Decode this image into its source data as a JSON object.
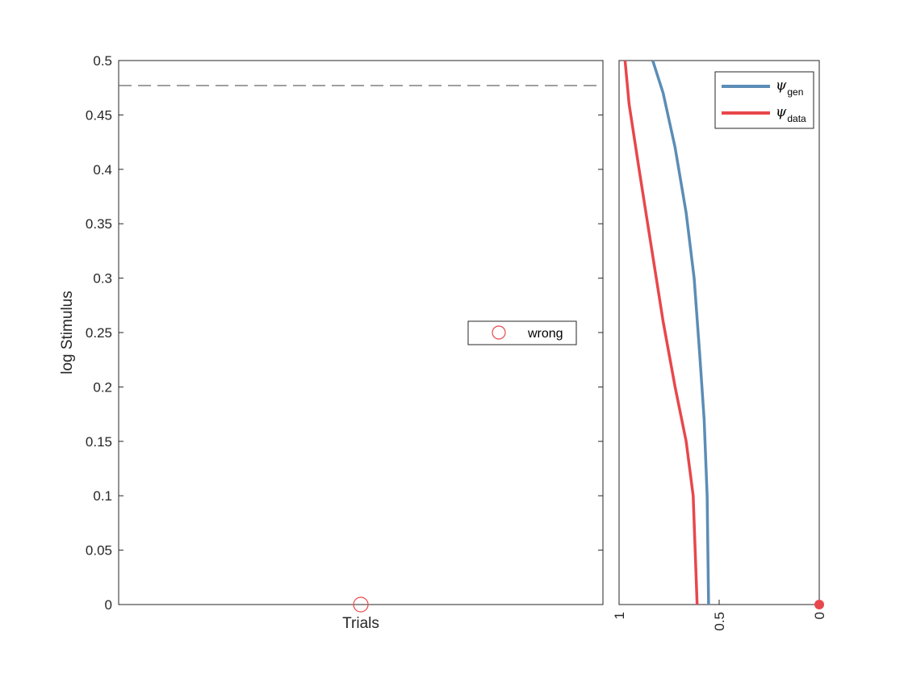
{
  "chart_data": [
    {
      "type": "scatter",
      "xlabel": "Trials",
      "ylabel": "log Stimulus",
      "ylim": [
        0,
        0.5
      ],
      "yticks": [
        "0",
        "0.05",
        "0.1",
        "0.15",
        "0.2",
        "0.25",
        "0.3",
        "0.35",
        "0.4",
        "0.45",
        "0.5"
      ],
      "threshold_line": 0.477,
      "series": [
        {
          "name": "wrong",
          "marker": "open-circle",
          "color": "#e8474b",
          "points": [
            {
              "x": 1,
              "y": 0
            }
          ]
        }
      ],
      "legend": {
        "position": "right",
        "entries": [
          "wrong"
        ]
      }
    },
    {
      "type": "line",
      "orientation": "vertical",
      "xlim": [
        1,
        0
      ],
      "xticks": [
        "1",
        "0.5",
        "0"
      ],
      "ylim": [
        0,
        0.5
      ],
      "series": [
        {
          "name": "ψ_gen",
          "symbol": "ψ",
          "subscript": "gen",
          "color": "#5b8db6",
          "x": [
            0.553,
            0.56,
            0.575,
            0.597,
            0.625,
            0.665,
            0.72,
            0.78,
            0.832
          ],
          "y": [
            0,
            0.1,
            0.17,
            0.23,
            0.3,
            0.36,
            0.42,
            0.47,
            0.5
          ]
        },
        {
          "name": "ψ_data",
          "symbol": "ψ",
          "subscript": "data",
          "color": "#e8474b",
          "x": [
            0.61,
            0.63,
            0.665,
            0.72,
            0.78,
            0.84,
            0.9,
            0.95,
            0.97
          ],
          "y": [
            0,
            0.1,
            0.15,
            0.2,
            0.26,
            0.33,
            0.4,
            0.46,
            0.5
          ]
        }
      ],
      "marker_point": {
        "x": 0,
        "y": 0,
        "color": "#e8474b"
      },
      "legend": {
        "position": "top-right",
        "entries": [
          "ψgen",
          "ψdata"
        ]
      }
    }
  ]
}
